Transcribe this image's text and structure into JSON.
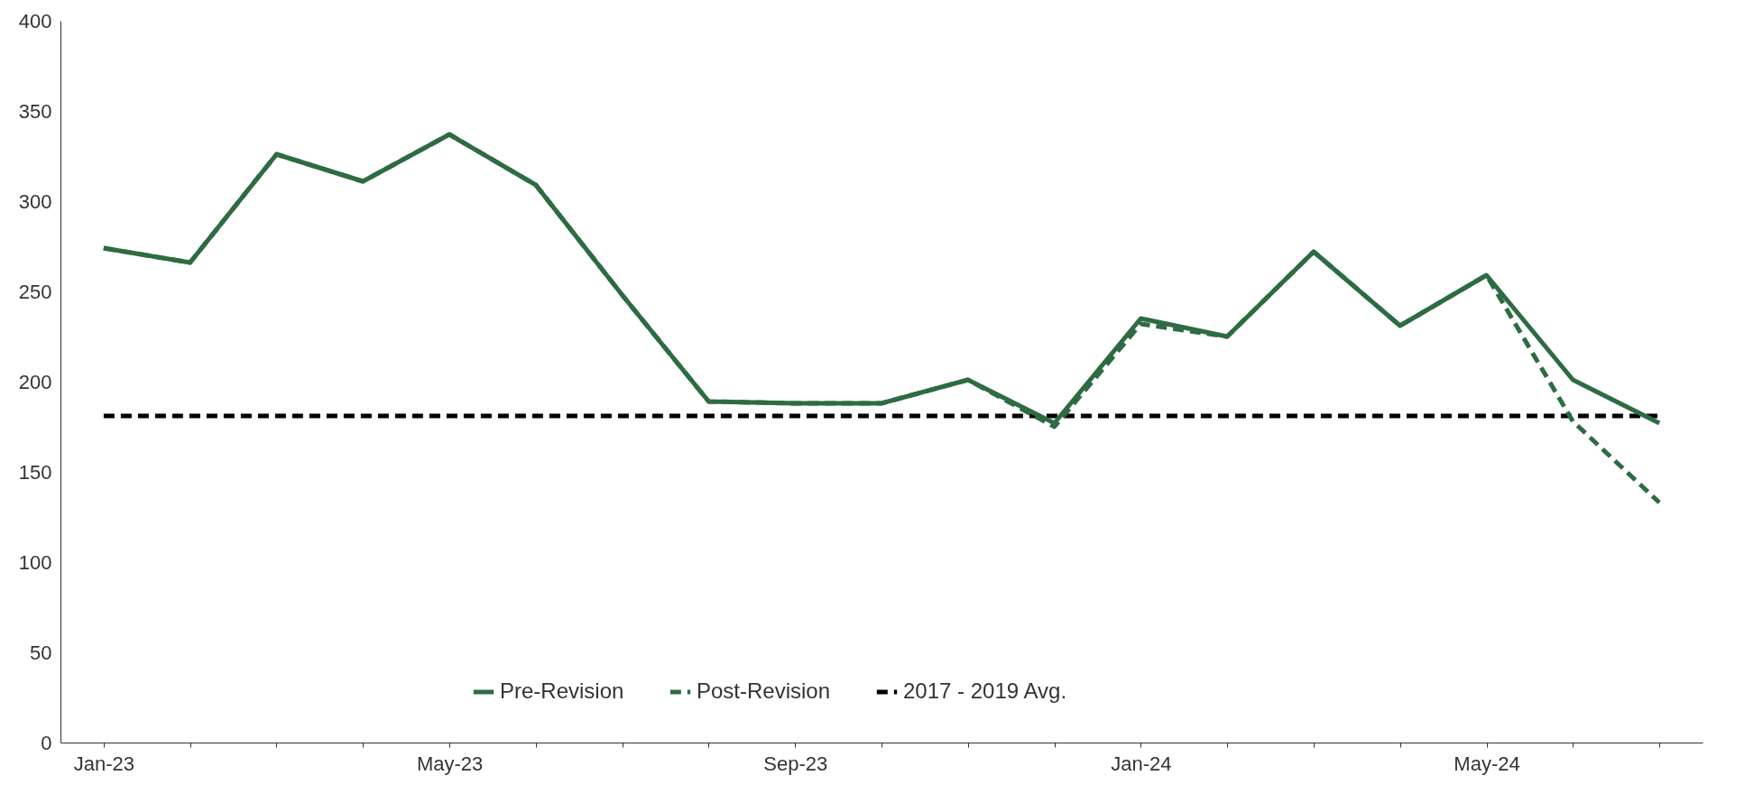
{
  "chart_data": {
    "type": "line",
    "categories": [
      "Jan-23",
      null,
      null,
      null,
      "May-23",
      null,
      null,
      null,
      "Sep-23",
      null,
      null,
      null,
      "Jan-24",
      null,
      null,
      null,
      "May-24",
      null,
      null
    ],
    "series": [
      {
        "name": "Pre-Revision",
        "color": "#2e6b43",
        "line_style": "solid",
        "values": [
          274,
          266,
          326,
          311,
          337,
          309,
          248,
          189,
          188,
          188,
          201,
          177,
          235,
          225,
          272,
          231,
          259,
          201,
          177
        ]
      },
      {
        "name": "Post-Revision",
        "color": "#2e6b43",
        "line_style": "dashed",
        "values": [
          274,
          266,
          326,
          311,
          337,
          309,
          248,
          189,
          188,
          188,
          201,
          175,
          232,
          225,
          272,
          231,
          259,
          178,
          133
        ]
      }
    ],
    "ref_lines": [
      {
        "axis": "y",
        "value": 181,
        "label": "2017 - 2019 Avg.",
        "color": "#000000",
        "line_style": "dashed"
      }
    ],
    "ylim": [
      0,
      400
    ],
    "yticks": [
      0,
      50,
      100,
      150,
      200,
      250,
      300,
      350,
      400
    ],
    "grid": false,
    "legend": "bottom"
  }
}
